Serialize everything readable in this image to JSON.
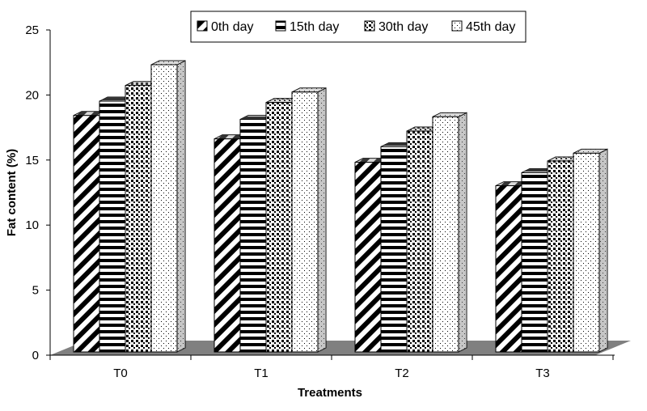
{
  "chart_data": {
    "type": "bar",
    "categories": [
      "T0",
      "T1",
      "T2",
      "T3"
    ],
    "series": [
      {
        "name": "0th day",
        "values": [
          18.3,
          16.5,
          14.7,
          12.9
        ]
      },
      {
        "name": "15th day",
        "values": [
          19.4,
          18.0,
          15.9,
          13.9
        ]
      },
      {
        "name": "30th day",
        "values": [
          20.6,
          19.3,
          17.1,
          14.8
        ]
      },
      {
        "name": "45th day",
        "values": [
          22.2,
          20.1,
          18.2,
          15.4
        ]
      }
    ],
    "xlabel": "Treatments",
    "ylabel": "Fat content (%)",
    "ylim": [
      0,
      25
    ],
    "yticks": [
      "0",
      "5",
      "10",
      "15",
      "20",
      "25"
    ],
    "grid": false,
    "legend_position": "top",
    "style": "3d-clustered-bar-patterned",
    "colors": {
      "floor": "#808080",
      "bar_edge": "#000000",
      "bar_fill": "#ffffff",
      "side_shade": "#a0a0a0"
    }
  }
}
